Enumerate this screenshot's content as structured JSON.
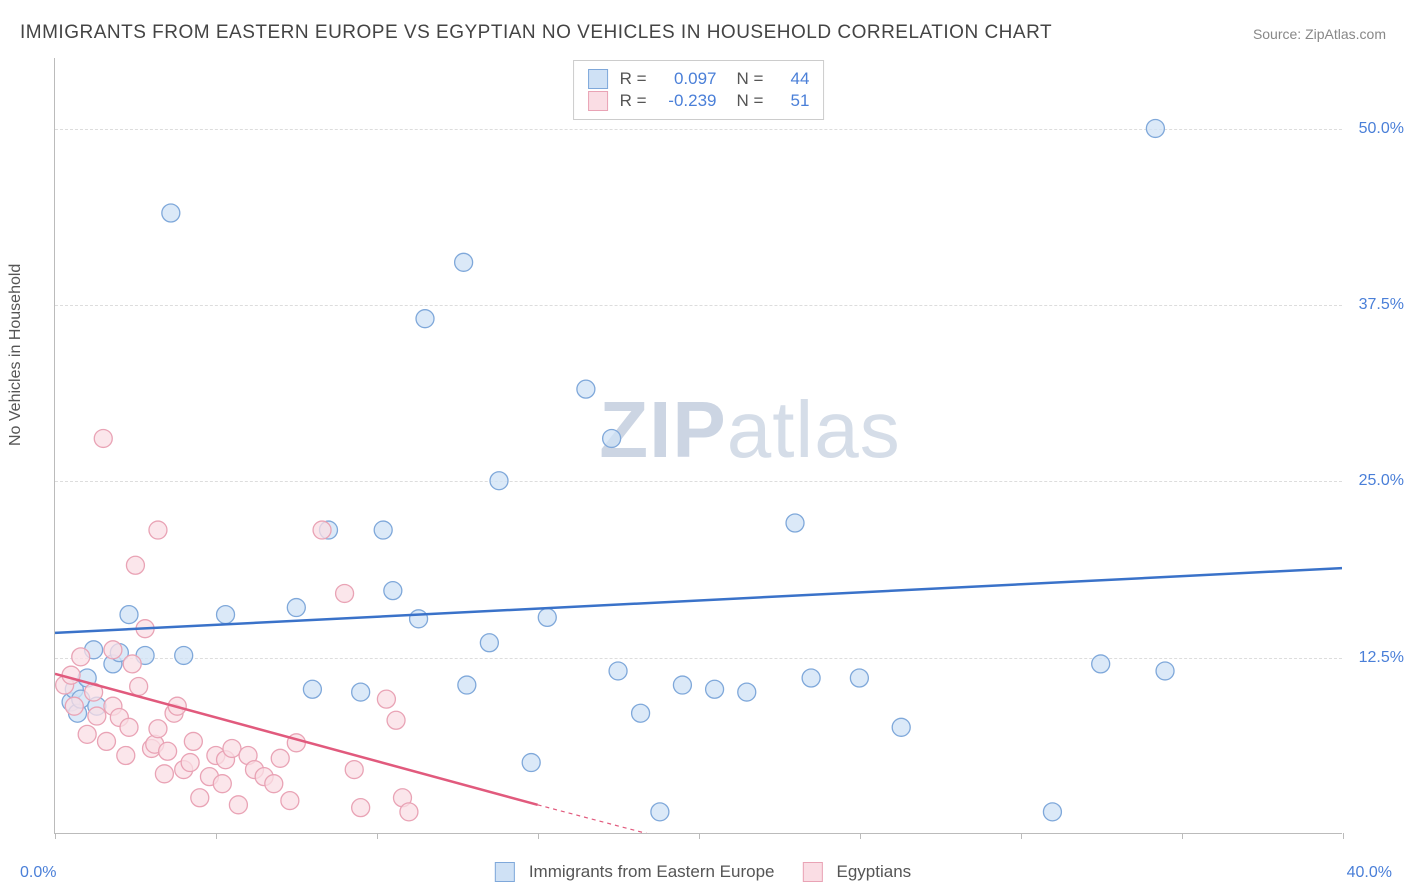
{
  "title": "IMMIGRANTS FROM EASTERN EUROPE VS EGYPTIAN NO VEHICLES IN HOUSEHOLD CORRELATION CHART",
  "source": "Source: ZipAtlas.com",
  "watermark_a": "ZIP",
  "watermark_b": "atlas",
  "chart": {
    "type": "scatter",
    "xlim": [
      0,
      40
    ],
    "ylim": [
      0,
      55
    ],
    "y_label": "No Vehicles in Household",
    "x_ticks": [
      0,
      5,
      10,
      15,
      20,
      25,
      30,
      35,
      40
    ],
    "x_tick_labels_shown": {
      "0": "0.0%",
      "40": "40.0%"
    },
    "y_ticks": [
      12.5,
      25.0,
      37.5,
      50.0
    ],
    "y_tick_labels": [
      "12.5%",
      "25.0%",
      "37.5%",
      "50.0%"
    ],
    "background_color": "#ffffff",
    "grid_color": "#dddddd",
    "axis_color": "#bbbbbb",
    "tick_label_color": "#4a7fd8",
    "series": [
      {
        "name": "Immigrants from Eastern Europe",
        "marker_fill": "#cfe1f5",
        "marker_stroke": "#7fa8da",
        "marker_radius": 9,
        "marker_opacity": 0.75,
        "line_color": "#3a72c9",
        "line_width": 2.5,
        "r_value": "0.097",
        "n_value": "44",
        "trend": {
          "x1": 0,
          "y1": 14.2,
          "x2": 40,
          "y2": 18.8
        },
        "points": [
          [
            0.5,
            9.3
          ],
          [
            0.6,
            10.2
          ],
          [
            0.7,
            8.5
          ],
          [
            0.8,
            9.5
          ],
          [
            1.0,
            11.0
          ],
          [
            1.2,
            13.0
          ],
          [
            1.3,
            9.0
          ],
          [
            1.8,
            12.0
          ],
          [
            2.0,
            12.8
          ],
          [
            2.3,
            15.5
          ],
          [
            2.8,
            12.6
          ],
          [
            3.6,
            44.0
          ],
          [
            4.0,
            12.6
          ],
          [
            5.3,
            15.5
          ],
          [
            7.5,
            16.0
          ],
          [
            8.0,
            10.2
          ],
          [
            8.5,
            21.5
          ],
          [
            9.5,
            10.0
          ],
          [
            10.2,
            21.5
          ],
          [
            10.5,
            17.2
          ],
          [
            11.3,
            15.2
          ],
          [
            11.5,
            36.5
          ],
          [
            12.7,
            40.5
          ],
          [
            12.8,
            10.5
          ],
          [
            13.5,
            13.5
          ],
          [
            13.8,
            25.0
          ],
          [
            14.8,
            5.0
          ],
          [
            15.3,
            15.3
          ],
          [
            16.5,
            31.5
          ],
          [
            17.3,
            28.0
          ],
          [
            17.5,
            11.5
          ],
          [
            18.2,
            8.5
          ],
          [
            18.8,
            1.5
          ],
          [
            19.5,
            10.5
          ],
          [
            20.5,
            10.2
          ],
          [
            21.5,
            10.0
          ],
          [
            23.0,
            22.0
          ],
          [
            23.5,
            11.0
          ],
          [
            25.0,
            11.0
          ],
          [
            26.3,
            7.5
          ],
          [
            31.0,
            1.5
          ],
          [
            32.5,
            12.0
          ],
          [
            34.2,
            50.0
          ],
          [
            34.5,
            11.5
          ]
        ]
      },
      {
        "name": "Egyptians",
        "marker_fill": "#fadde4",
        "marker_stroke": "#e9a3b5",
        "marker_radius": 9,
        "marker_opacity": 0.75,
        "line_color": "#e15a7d",
        "line_width": 2.5,
        "r_value": "-0.239",
        "n_value": "51",
        "trend": {
          "x1": 0,
          "y1": 11.3,
          "x2": 15,
          "y2": 2.0
        },
        "trend_dash": {
          "x1": 15,
          "y1": 2.0,
          "x2": 20,
          "y2": -1.0
        },
        "points": [
          [
            0.3,
            10.5
          ],
          [
            0.5,
            11.2
          ],
          [
            0.6,
            9.0
          ],
          [
            0.8,
            12.5
          ],
          [
            1.0,
            7.0
          ],
          [
            1.2,
            10.0
          ],
          [
            1.3,
            8.3
          ],
          [
            1.5,
            28.0
          ],
          [
            1.6,
            6.5
          ],
          [
            1.8,
            13.0
          ],
          [
            1.8,
            9.0
          ],
          [
            2.0,
            8.2
          ],
          [
            2.2,
            5.5
          ],
          [
            2.3,
            7.5
          ],
          [
            2.4,
            12.0
          ],
          [
            2.5,
            19.0
          ],
          [
            2.6,
            10.4
          ],
          [
            2.8,
            14.5
          ],
          [
            3.0,
            6.0
          ],
          [
            3.1,
            6.3
          ],
          [
            3.2,
            7.4
          ],
          [
            3.2,
            21.5
          ],
          [
            3.4,
            4.2
          ],
          [
            3.5,
            5.8
          ],
          [
            3.7,
            8.5
          ],
          [
            3.8,
            9.0
          ],
          [
            4.0,
            4.5
          ],
          [
            4.2,
            5.0
          ],
          [
            4.3,
            6.5
          ],
          [
            4.5,
            2.5
          ],
          [
            4.8,
            4.0
          ],
          [
            5.0,
            5.5
          ],
          [
            5.2,
            3.5
          ],
          [
            5.3,
            5.2
          ],
          [
            5.5,
            6.0
          ],
          [
            5.7,
            2.0
          ],
          [
            6.0,
            5.5
          ],
          [
            6.2,
            4.5
          ],
          [
            6.5,
            4.0
          ],
          [
            6.8,
            3.5
          ],
          [
            7.0,
            5.3
          ],
          [
            7.3,
            2.3
          ],
          [
            7.5,
            6.4
          ],
          [
            8.3,
            21.5
          ],
          [
            9.0,
            17.0
          ],
          [
            9.3,
            4.5
          ],
          [
            9.5,
            1.8
          ],
          [
            10.3,
            9.5
          ],
          [
            10.6,
            8.0
          ],
          [
            10.8,
            2.5
          ],
          [
            11.0,
            1.5
          ]
        ]
      }
    ]
  },
  "legend_top": {
    "r_label": "R =",
    "n_label": "N ="
  },
  "legend_bottom": {
    "series1_label": "Immigrants from Eastern Europe",
    "series2_label": "Egyptians"
  }
}
